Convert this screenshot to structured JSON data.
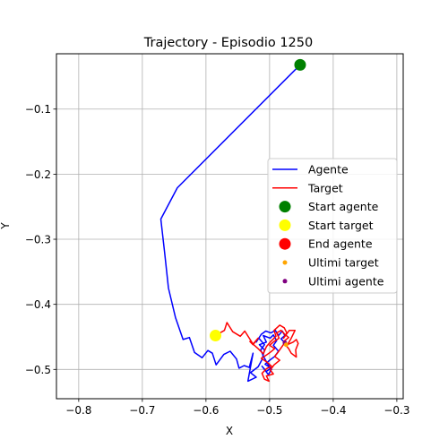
{
  "chart_data": {
    "type": "line",
    "title": "Trajectory - Episodio 1250",
    "xlabel": "X",
    "ylabel": "Y",
    "xlim": [
      -0.835,
      -0.29
    ],
    "ylim": [
      -0.545,
      -0.015
    ],
    "x_ticks": [
      -0.8,
      -0.7,
      -0.6,
      -0.5,
      -0.4,
      -0.3
    ],
    "x_tick_labels": [
      "−0.8",
      "−0.7",
      "−0.6",
      "−0.5",
      "−0.4",
      "−0.3"
    ],
    "y_ticks": [
      -0.1,
      -0.2,
      -0.3,
      -0.4,
      -0.5
    ],
    "y_tick_labels": [
      "−0.1",
      "−0.2",
      "−0.3",
      "−0.4",
      "−0.5"
    ],
    "grid": true,
    "legend_position": "center-right",
    "legend": [
      {
        "label": "Agente",
        "kind": "line",
        "color": "#0000ff"
      },
      {
        "label": "Target",
        "kind": "line",
        "color": "#ff0000"
      },
      {
        "label": "Start agente",
        "kind": "marker",
        "color": "#008000",
        "size": "large"
      },
      {
        "label": "Start target",
        "kind": "marker",
        "color": "#ffff00",
        "size": "large"
      },
      {
        "label": "End agente",
        "kind": "marker",
        "color": "#ff0000",
        "size": "large"
      },
      {
        "label": "Ultimi target",
        "kind": "marker",
        "color": "#ffa500",
        "size": "small"
      },
      {
        "label": "Ultimi agente",
        "kind": "marker",
        "color": "#800080",
        "size": "small"
      }
    ],
    "series": [
      {
        "name": "Agente",
        "color": "#0000ff",
        "points": [
          [
            -0.452,
            -0.032
          ],
          [
            -0.645,
            -0.221
          ],
          [
            -0.671,
            -0.269
          ],
          [
            -0.665,
            -0.32
          ],
          [
            -0.659,
            -0.375
          ],
          [
            -0.648,
            -0.42
          ],
          [
            -0.636,
            -0.454
          ],
          [
            -0.626,
            -0.451
          ],
          [
            -0.618,
            -0.474
          ],
          [
            -0.606,
            -0.482
          ],
          [
            -0.597,
            -0.471
          ],
          [
            -0.59,
            -0.475
          ],
          [
            -0.584,
            -0.493
          ],
          [
            -0.572,
            -0.477
          ],
          [
            -0.562,
            -0.472
          ],
          [
            -0.552,
            -0.484
          ],
          [
            -0.548,
            -0.498
          ],
          [
            -0.54,
            -0.494
          ],
          [
            -0.532,
            -0.497
          ],
          [
            -0.526,
            -0.475
          ],
          [
            -0.534,
            -0.518
          ],
          [
            -0.521,
            -0.512
          ],
          [
            -0.53,
            -0.505
          ],
          [
            -0.518,
            -0.496
          ],
          [
            -0.512,
            -0.485
          ],
          [
            -0.508,
            -0.47
          ],
          [
            -0.516,
            -0.462
          ],
          [
            -0.505,
            -0.458
          ],
          [
            -0.51,
            -0.448
          ],
          [
            -0.499,
            -0.452
          ],
          [
            -0.494,
            -0.447
          ],
          [
            -0.489,
            -0.456
          ],
          [
            -0.494,
            -0.463
          ],
          [
            -0.486,
            -0.472
          ],
          [
            -0.492,
            -0.48
          ],
          [
            -0.5,
            -0.486
          ],
          [
            -0.507,
            -0.492
          ],
          [
            -0.498,
            -0.498
          ],
          [
            -0.505,
            -0.503
          ],
          [
            -0.512,
            -0.495
          ],
          [
            -0.502,
            -0.508
          ],
          [
            -0.497,
            -0.5
          ],
          [
            -0.504,
            -0.49
          ],
          [
            -0.51,
            -0.479
          ],
          [
            -0.514,
            -0.47
          ],
          [
            -0.508,
            -0.462
          ],
          [
            -0.517,
            -0.452
          ],
          [
            -0.521,
            -0.458
          ],
          [
            -0.513,
            -0.446
          ],
          [
            -0.506,
            -0.441
          ],
          [
            -0.498,
            -0.444
          ],
          [
            -0.491,
            -0.44
          ],
          [
            -0.486,
            -0.448
          ],
          [
            -0.48,
            -0.441
          ],
          [
            -0.476,
            -0.448
          ],
          [
            -0.482,
            -0.453
          ],
          [
            -0.476,
            -0.459
          ]
        ]
      },
      {
        "name": "Target",
        "color": "#ff0000",
        "points": [
          [
            -0.585,
            -0.448
          ],
          [
            -0.571,
            -0.44
          ],
          [
            -0.567,
            -0.428
          ],
          [
            -0.558,
            -0.442
          ],
          [
            -0.546,
            -0.449
          ],
          [
            -0.539,
            -0.441
          ],
          [
            -0.532,
            -0.452
          ],
          [
            -0.526,
            -0.461
          ],
          [
            -0.518,
            -0.452
          ],
          [
            -0.526,
            -0.462
          ],
          [
            -0.531,
            -0.457
          ],
          [
            -0.518,
            -0.468
          ],
          [
            -0.51,
            -0.476
          ],
          [
            -0.505,
            -0.465
          ],
          [
            -0.499,
            -0.458
          ],
          [
            -0.49,
            -0.449
          ],
          [
            -0.493,
            -0.44
          ],
          [
            -0.484,
            -0.432
          ],
          [
            -0.477,
            -0.436
          ],
          [
            -0.473,
            -0.444
          ],
          [
            -0.478,
            -0.452
          ],
          [
            -0.469,
            -0.44
          ],
          [
            -0.46,
            -0.44
          ],
          [
            -0.467,
            -0.454
          ],
          [
            -0.472,
            -0.462
          ],
          [
            -0.463,
            -0.458
          ],
          [
            -0.458,
            -0.454
          ],
          [
            -0.455,
            -0.46
          ],
          [
            -0.459,
            -0.47
          ],
          [
            -0.458,
            -0.481
          ],
          [
            -0.466,
            -0.475
          ],
          [
            -0.47,
            -0.468
          ],
          [
            -0.477,
            -0.46
          ],
          [
            -0.482,
            -0.467
          ],
          [
            -0.487,
            -0.474
          ],
          [
            -0.492,
            -0.48
          ],
          [
            -0.484,
            -0.486
          ],
          [
            -0.493,
            -0.493
          ],
          [
            -0.499,
            -0.501
          ],
          [
            -0.494,
            -0.507
          ],
          [
            -0.505,
            -0.51
          ],
          [
            -0.501,
            -0.518
          ],
          [
            -0.508,
            -0.515
          ],
          [
            -0.512,
            -0.506
          ],
          [
            -0.505,
            -0.499
          ],
          [
            -0.497,
            -0.495
          ],
          [
            -0.505,
            -0.488
          ],
          [
            -0.513,
            -0.483
          ],
          [
            -0.505,
            -0.478
          ],
          [
            -0.498,
            -0.473
          ],
          [
            -0.492,
            -0.468
          ],
          [
            -0.5,
            -0.463
          ],
          [
            -0.493,
            -0.457
          ],
          [
            -0.485,
            -0.452
          ],
          [
            -0.489,
            -0.444
          ],
          [
            -0.482,
            -0.44
          ],
          [
            -0.476,
            -0.446
          ],
          [
            -0.47,
            -0.451
          ],
          [
            -0.478,
            -0.457
          ],
          [
            -0.474,
            -0.462
          ]
        ]
      }
    ],
    "markers": [
      {
        "name": "Start agente",
        "x": -0.452,
        "y": -0.032,
        "color": "#008000",
        "size": "large"
      },
      {
        "name": "Start target",
        "x": -0.585,
        "y": -0.448,
        "color": "#ffff00",
        "size": "large"
      },
      {
        "name": "Ultimi agente",
        "x": -0.476,
        "y": -0.459,
        "color": "#800080",
        "size": "small"
      },
      {
        "name": "Ultimi target",
        "x": -0.474,
        "y": -0.462,
        "color": "#ffa500",
        "size": "small"
      }
    ]
  }
}
